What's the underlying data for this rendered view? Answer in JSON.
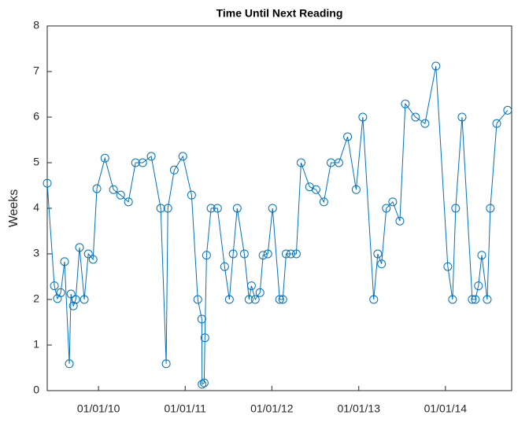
{
  "chart_data": {
    "type": "line",
    "title": "Time Until Next Reading",
    "ylabel": "Weeks",
    "x": [
      "2009-05-30",
      "2009-06-29",
      "2009-07-12",
      "2009-07-26",
      "2009-08-11",
      "2009-08-31",
      "2009-09-07",
      "2009-09-17",
      "2009-09-27",
      "2009-10-13",
      "2009-11-02",
      "2009-11-19",
      "2009-12-09",
      "2009-12-25",
      "2010-01-28",
      "2010-03-05",
      "2010-04-04",
      "2010-05-07",
      "2010-06-06",
      "2010-07-06",
      "2010-08-11",
      "2010-09-20",
      "2010-10-13",
      "2010-10-20",
      "2010-11-16",
      "2010-12-22",
      "2011-01-28",
      "2011-02-23",
      "2011-03-12",
      "2011-03-13",
      "2011-03-22",
      "2011-03-25",
      "2011-04-01",
      "2011-04-20",
      "2011-05-17",
      "2011-06-16",
      "2011-07-06",
      "2011-07-22",
      "2011-08-08",
      "2011-09-07",
      "2011-09-27",
      "2011-10-07",
      "2011-10-23",
      "2011-11-12",
      "2011-11-25",
      "2011-12-15",
      "2012-01-04",
      "2012-02-03",
      "2012-02-16",
      "2012-03-01",
      "2012-03-21",
      "2012-04-13",
      "2012-05-03",
      "2012-06-08",
      "2012-07-05",
      "2012-08-07",
      "2012-09-06",
      "2012-10-09",
      "2012-11-15",
      "2012-12-21",
      "2013-01-18",
      "2013-03-05",
      "2013-03-22",
      "2013-04-07",
      "2013-04-27",
      "2013-05-24",
      "2013-06-23",
      "2013-07-16",
      "2013-08-28",
      "2013-10-07",
      "2013-11-22",
      "2014-01-11",
      "2014-01-31",
      "2014-02-13",
      "2014-03-12",
      "2014-04-24",
      "2014-05-07",
      "2014-05-20",
      "2014-06-03",
      "2014-06-26",
      "2014-07-09",
      "2014-08-05",
      "2014-09-20"
    ],
    "series": [
      {
        "color": "#0072bd",
        "values": [
          4.55,
          2.3,
          2.02,
          2.15,
          2.83,
          0.59,
          2.12,
          1.86,
          2.0,
          3.14,
          2.0,
          3.0,
          2.88,
          4.43,
          5.1,
          4.41,
          4.29,
          4.14,
          5.0,
          5.0,
          5.14,
          4.0,
          0.59,
          4.0,
          4.84,
          5.14,
          4.29,
          2.0,
          1.57,
          0.14,
          0.17,
          1.16,
          2.97,
          4.0,
          4.0,
          2.72,
          2.0,
          3.0,
          4.0,
          3.0,
          2.0,
          2.3,
          2.0,
          2.15,
          2.97,
          3.0,
          4.0,
          2.0,
          2.0,
          3.0,
          3.0,
          3.0,
          5.0,
          4.47,
          4.41,
          4.14,
          5.0,
          5.0,
          5.57,
          4.41,
          6.0,
          2.0,
          3.0,
          2.78,
          4.0,
          4.14,
          3.72,
          6.29,
          6.0,
          5.86,
          7.12,
          2.72,
          2.0,
          4.0,
          6.0,
          2.0,
          2.0,
          2.3,
          2.97,
          2.0,
          4.0,
          5.86,
          6.15
        ]
      }
    ],
    "xlim": [
      "2009-05-30",
      "2014-10-07"
    ],
    "xticks": [
      {
        "value": "2010-01-01",
        "label": "01/01/10"
      },
      {
        "value": "2011-01-01",
        "label": "01/01/11"
      },
      {
        "value": "2012-01-01",
        "label": "01/01/12"
      },
      {
        "value": "2013-01-01",
        "label": "01/01/13"
      },
      {
        "value": "2014-01-01",
        "label": "01/01/14"
      }
    ],
    "ylim": [
      0,
      8
    ],
    "yticks": [
      0,
      1,
      2,
      3,
      4,
      5,
      6,
      7,
      8
    ],
    "grid": false
  }
}
